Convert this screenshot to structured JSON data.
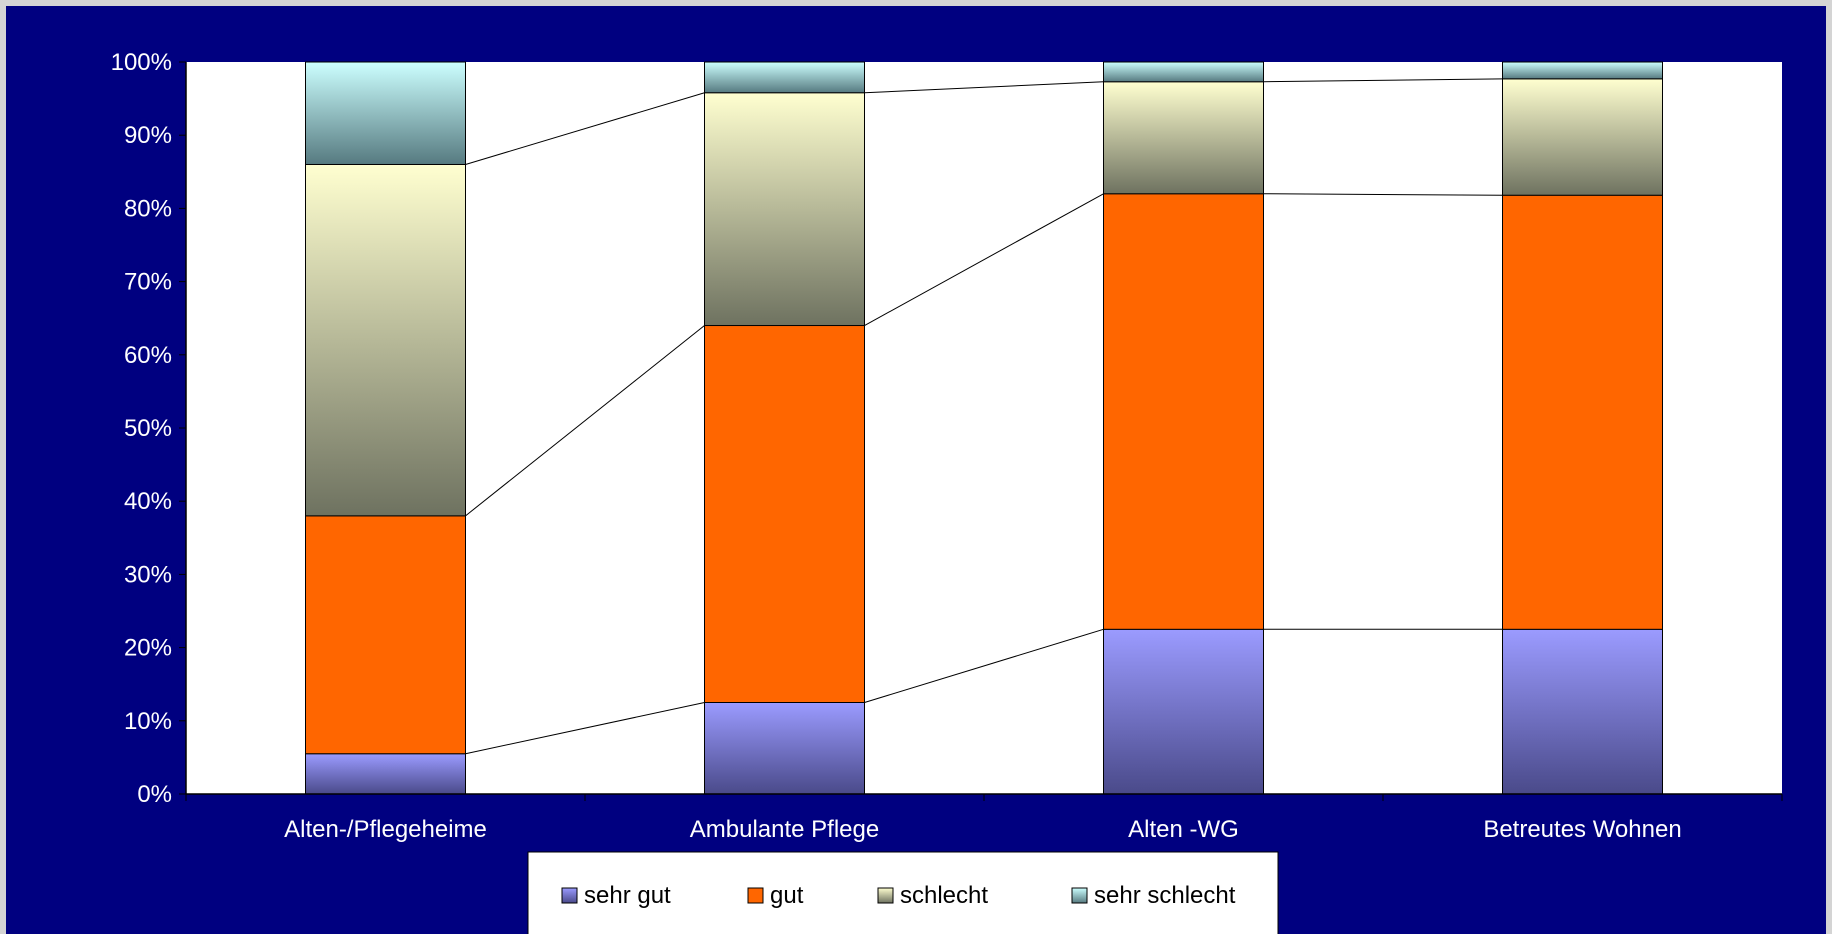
{
  "chart_data": {
    "type": "bar",
    "stacked": true,
    "percent": true,
    "categories": [
      "Alten-/Pflegeheime",
      "Ambulante Pflege",
      "Alten -WG",
      "Betreutes Wohnen"
    ],
    "series": [
      {
        "name": "sehr gut",
        "values": [
          5.5,
          12.5,
          22.5,
          22.5
        ],
        "color_top": "#9b9bff",
        "color_bottom": "#4a4a8a"
      },
      {
        "name": "gut",
        "values": [
          32.5,
          51.5,
          59.5,
          59.3
        ],
        "color_top": "#ff6600",
        "color_bottom": "#ff6600"
      },
      {
        "name": "schlecht",
        "values": [
          48.0,
          31.8,
          15.3,
          15.9
        ],
        "color_top": "#ffffd0",
        "color_bottom": "#6e7260"
      },
      {
        "name": "sehr schlecht",
        "values": [
          14.0,
          4.2,
          2.7,
          2.3
        ],
        "color_top": "#ccffff",
        "color_bottom": "#567a80"
      }
    ],
    "ylim": [
      0,
      100
    ],
    "yticks": [
      "0%",
      "10%",
      "20%",
      "30%",
      "40%",
      "50%",
      "60%",
      "70%",
      "80%",
      "90%",
      "100%"
    ],
    "series_lines": true,
    "legend_position": "bottom",
    "background": "#000080",
    "plot_background": "#ffffff"
  }
}
